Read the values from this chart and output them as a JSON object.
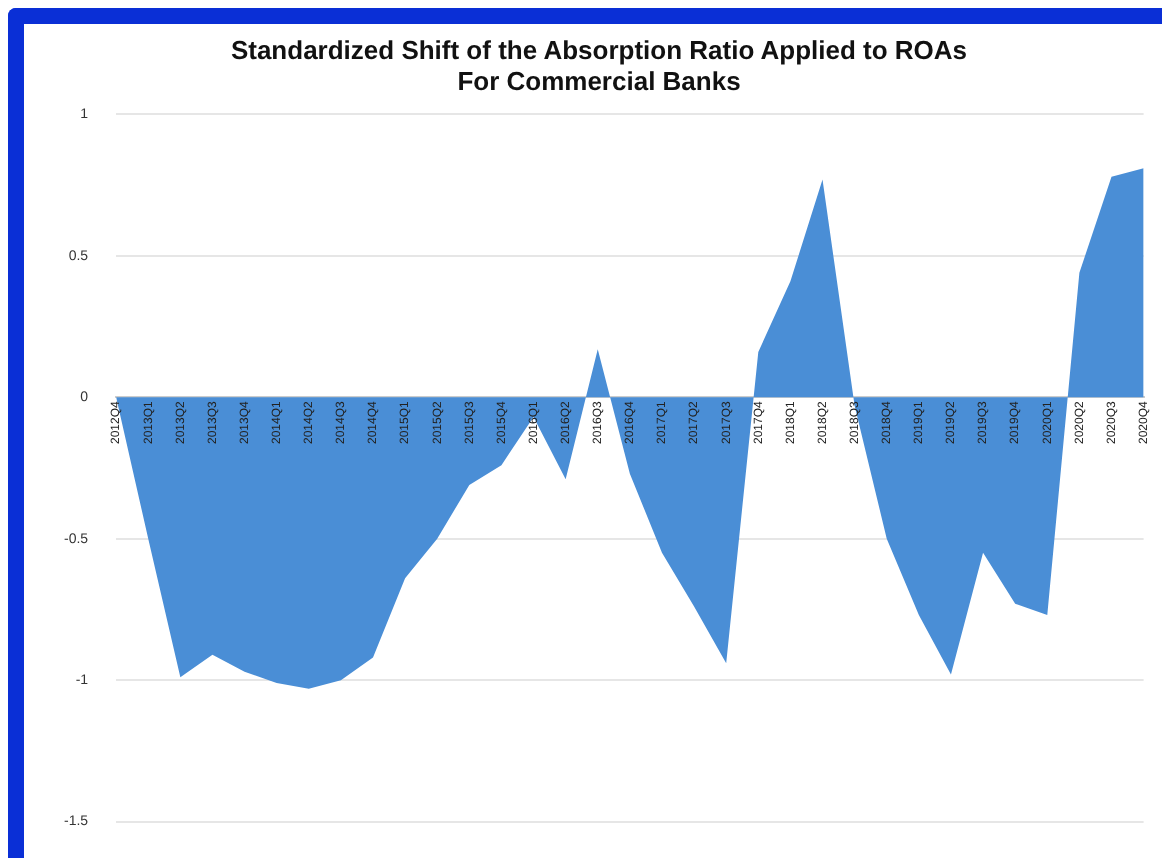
{
  "chart_data": {
    "type": "area",
    "title": [
      "Standardized Shift of the Absorption Ratio Applied to ROAs",
      "For Commercial Banks"
    ],
    "categories": [
      "2012Q4",
      "2013Q1",
      "2013Q2",
      "2013Q3",
      "2013Q4",
      "2014Q1",
      "2014Q2",
      "2014Q3",
      "2014Q4",
      "2015Q1",
      "2015Q2",
      "2015Q3",
      "2015Q4",
      "2016Q1",
      "2016Q2",
      "2016Q3",
      "2016Q4",
      "2017Q1",
      "2017Q2",
      "2017Q3",
      "2017Q4",
      "2018Q1",
      "2018Q2",
      "2018Q3",
      "2018Q4",
      "2019Q1",
      "2019Q2",
      "2019Q3",
      "2019Q4",
      "2020Q1",
      "2020Q2",
      "2020Q3",
      "2020Q4"
    ],
    "values": [
      0,
      -0.5,
      -0.99,
      -0.91,
      -0.97,
      -1.01,
      -1.03,
      -1.0,
      -0.92,
      -0.64,
      -0.5,
      -0.31,
      -0.24,
      -0.07,
      -0.29,
      0.17,
      -0.27,
      -0.55,
      -0.74,
      -0.94,
      0.16,
      0.41,
      0.77,
      -0.03,
      -0.5,
      -0.77,
      -0.98,
      -0.55,
      -0.73,
      -0.77,
      0.44,
      0.78,
      0.81
    ],
    "color": "#4a8ed6",
    "ylim": [
      -1.5,
      1
    ],
    "yticks": [
      -1.5,
      -1,
      -0.5,
      0,
      0.5,
      1
    ],
    "grid": "y",
    "legend": false
  }
}
